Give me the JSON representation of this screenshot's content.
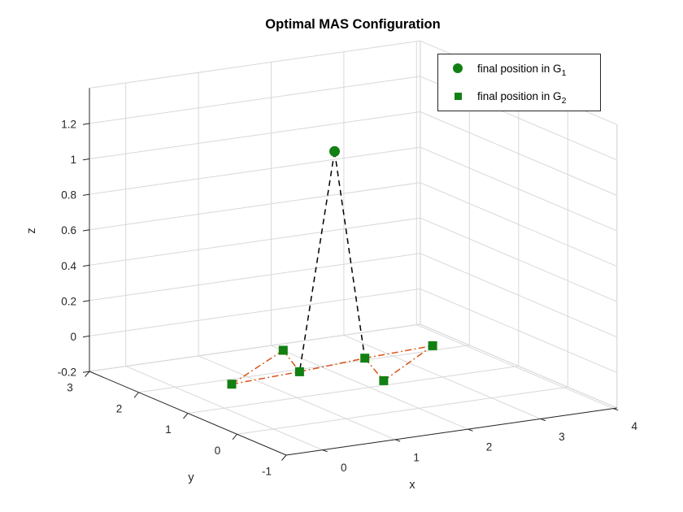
{
  "title": "Optimal MAS Configuration",
  "axes": {
    "xlabel": "x",
    "ylabel": "y",
    "zlabel": "z"
  },
  "legend": {
    "items": [
      {
        "marker": "circle",
        "label": "final position in G",
        "sub": "1"
      },
      {
        "marker": "square",
        "label": "final position in G",
        "sub": "2"
      }
    ]
  },
  "colors": {
    "marker_green": "#128012",
    "edge_dashed_black": "#000000",
    "edge_dashdot_orange": "#d95319",
    "grid": "#d8d8d8",
    "axis": "#262626",
    "tick_text": "#262626",
    "legend_border": "#262626",
    "background": "#ffffff"
  },
  "chart_data": {
    "type": "scatter",
    "subtype": "scatter3d",
    "title": "Optimal MAS Configuration",
    "xlabel": "x",
    "ylabel": "y",
    "zlabel": "z",
    "xlim": [
      -0.5,
      4.05
    ],
    "ylim": [
      -1,
      3
    ],
    "zlim": [
      -0.2,
      1.4
    ],
    "xticks": [
      0,
      1,
      2,
      3,
      4
    ],
    "yticks": [
      -1,
      0,
      1,
      2,
      3
    ],
    "zticks": [
      -0.2,
      0,
      0.2,
      0.4,
      0.6,
      0.8,
      1,
      1.2
    ],
    "grid": true,
    "legend_position": "top-right-inside",
    "series": [
      {
        "name": "final position in G_1",
        "marker": "circle",
        "color_hint": "green",
        "points": [
          [
            1.35,
            0.75,
            1.2
          ]
        ]
      },
      {
        "name": "final position in G_2",
        "marker": "square",
        "color_hint": "green",
        "points": [
          [
            1.15,
            1.5,
            0
          ],
          [
            0.8,
            0.65,
            0
          ],
          [
            -0.2,
            0.55,
            0
          ],
          [
            1.8,
            0.8,
            0
          ],
          [
            1.45,
            -0.1,
            0
          ],
          [
            2.8,
            0.9,
            0
          ]
        ]
      }
    ],
    "edges_dashed_black_g1_to_g2": [
      [
        0,
        1
      ],
      [
        0,
        3
      ]
    ],
    "edges_dashdot_orange_g2": [
      [
        0,
        1
      ],
      [
        0,
        2
      ],
      [
        2,
        1
      ],
      [
        1,
        3
      ],
      [
        3,
        4
      ],
      [
        4,
        5
      ],
      [
        3,
        5
      ]
    ]
  }
}
